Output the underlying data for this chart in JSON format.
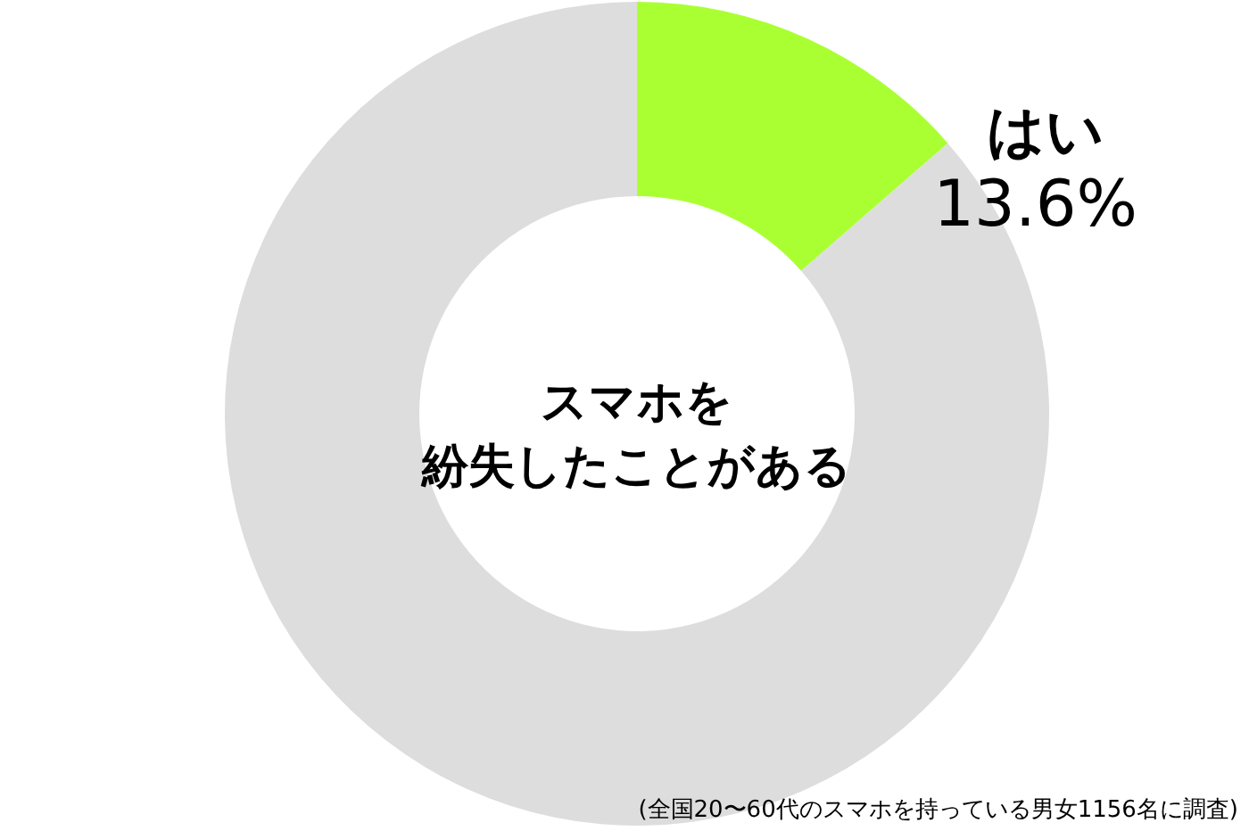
{
  "chart_data": {
    "type": "donut",
    "title": "スマホを紛失したことがある",
    "categories": [
      "はい",
      null
    ],
    "values": [
      13.6,
      86.4
    ],
    "colors": [
      "#aaff33",
      "#dddddd"
    ],
    "value_labels": [
      "13.6%",
      null
    ],
    "annotations": [
      "(全国20〜60代のスマホを持っている男女1156名に調査)"
    ]
  }
}
